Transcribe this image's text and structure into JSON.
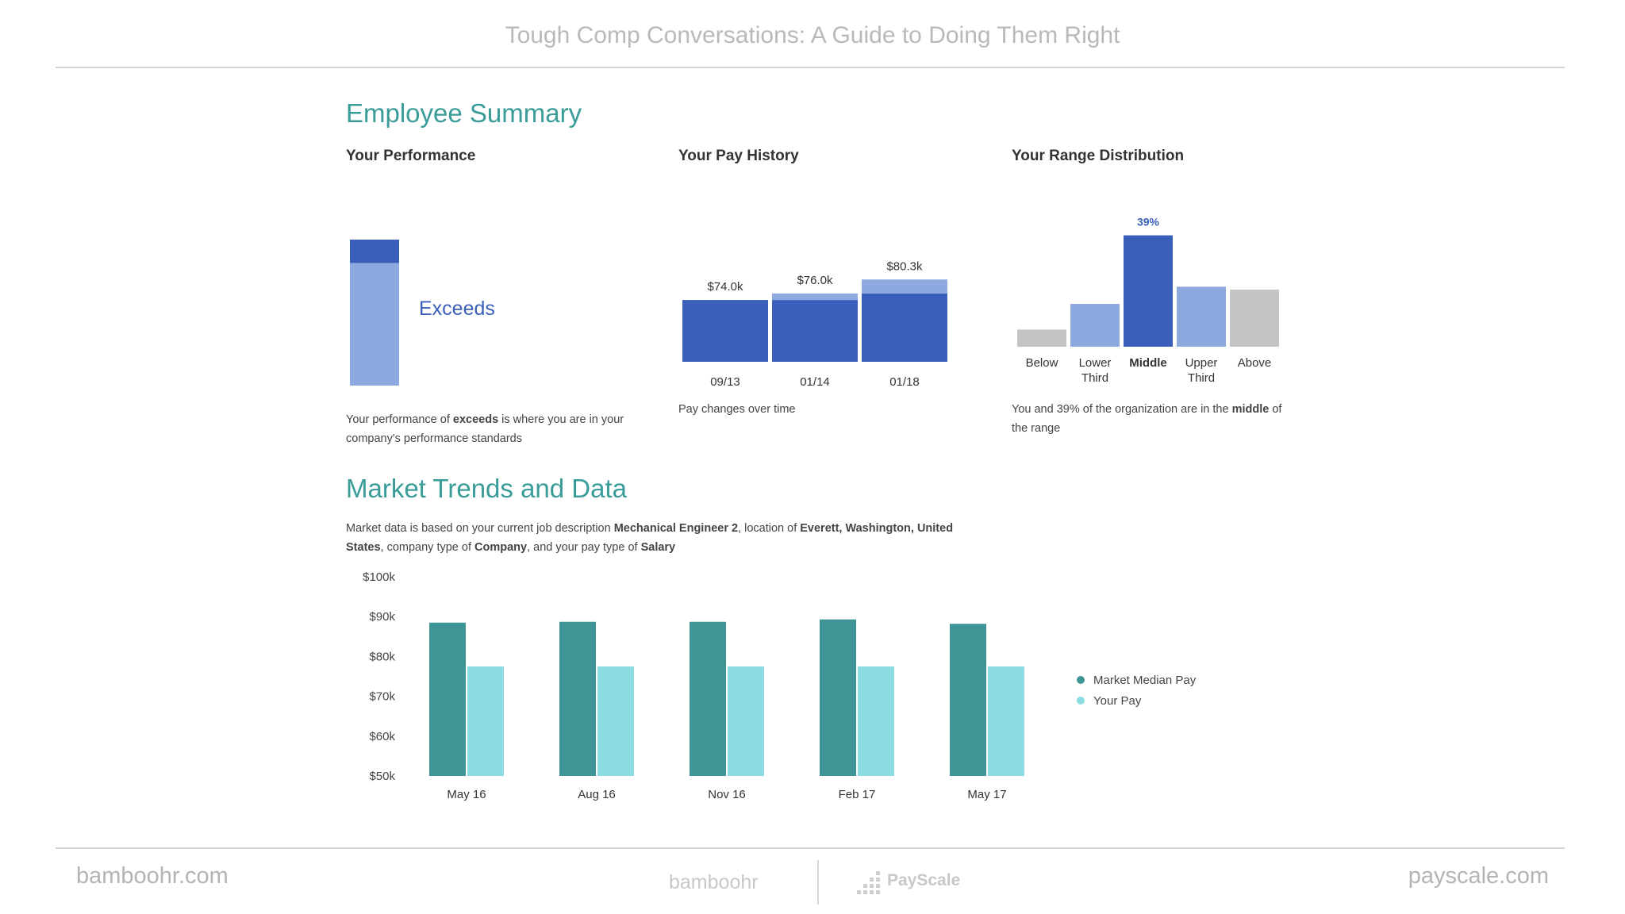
{
  "header": {
    "title": "Tough Comp Conversations: A Guide to Doing Them Right"
  },
  "employee_summary": {
    "heading": "Employee Summary",
    "performance": {
      "title": "Your Performance",
      "label": "Exceeds",
      "caption_parts": [
        "Your performance of ",
        "exceeds",
        " is where you are in your company's performance standards"
      ]
    },
    "pay_history": {
      "title": "Your Pay History",
      "caption": "Pay changes over time"
    },
    "range": {
      "title": "Your Range Distribution",
      "caption_parts": [
        "You and 39% of the organization are in the ",
        "middle",
        " of the range"
      ]
    }
  },
  "market": {
    "heading": "Market Trends and Data",
    "desc_parts": [
      "Market data is based on your current job description ",
      "Mechanical Engineer 2",
      ", location of ",
      "Everett, Washington, United States",
      ", company type of ",
      "Company",
      ", and your pay type of ",
      "Salary"
    ]
  },
  "footer": {
    "left": "bamboohr.com",
    "right": "payscale.com",
    "logo1": "bamboohr",
    "logo2": "PayScale"
  },
  "colors": {
    "accent_teal": "#3a9c98",
    "dark_blue": "#3a5fba",
    "light_blue": "#8ea9e0",
    "gray": "#c4c4c4",
    "market_teal": "#3f9595",
    "your_pay": "#8adbe2"
  },
  "chart_data": [
    {
      "type": "bar",
      "title": "Your Performance",
      "categories": [
        "Exceeds"
      ],
      "note": "Performance level shown as filled bar",
      "values": [
        0.84
      ]
    },
    {
      "type": "bar",
      "title": "Your Pay History",
      "categories": [
        "09/13",
        "01/14",
        "01/18"
      ],
      "values": [
        74.0,
        76.0,
        80.3
      ],
      "data_labels": [
        "$74.0k",
        "$76.0k",
        "$80.3k"
      ]
    },
    {
      "type": "bar",
      "title": "Your Range Distribution",
      "categories": [
        "Below",
        "Lower Third",
        "Middle",
        "Upper Third",
        "Above"
      ],
      "values": [
        6,
        15,
        39,
        21,
        20
      ],
      "data_labels": [
        "",
        "",
        "39%",
        "",
        ""
      ],
      "highlight": "Middle"
    },
    {
      "type": "bar",
      "title": "",
      "categories": [
        "May 16",
        "Aug 16",
        "Nov 16",
        "Feb 17",
        "May 17"
      ],
      "series": [
        {
          "name": "Market Median Pay",
          "values": [
            88.5,
            88.7,
            88.7,
            89.3,
            88.2
          ]
        },
        {
          "name": "Your Pay",
          "values": [
            77.5,
            77.5,
            77.5,
            77.5,
            77.5
          ]
        }
      ],
      "yticks": [
        "$100k",
        "$90k",
        "$80k",
        "$70k",
        "$60k",
        "$50k"
      ],
      "ylim": [
        50,
        100
      ],
      "legend": "right"
    }
  ]
}
